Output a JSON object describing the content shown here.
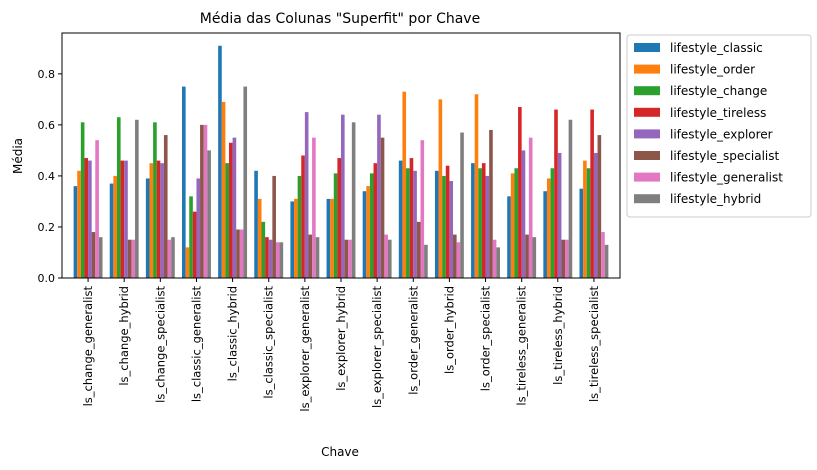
{
  "chart_data": {
    "type": "bar",
    "title": "Média das Colunas \"Superfit\" por Chave",
    "xlabel": "Chave",
    "ylabel": "Média",
    "ylim": [
      0,
      0.96
    ],
    "yticks": [
      "0.0",
      "0.2",
      "0.4",
      "0.6",
      "0.8"
    ],
    "ytick_values": [
      0,
      0.2,
      0.4,
      0.6,
      0.8
    ],
    "legend_position": "outside-right",
    "grid": false,
    "categories": [
      "ls_change_generalist",
      "ls_change_hybrid",
      "ls_change_specialist",
      "ls_classic_generalist",
      "ls_classic_hybrid",
      "ls_classic_specialist",
      "ls_explorer_generalist",
      "ls_explorer_hybrid",
      "ls_explorer_specialist",
      "ls_order_generalist",
      "ls_order_hybrid",
      "ls_order_specialist",
      "ls_tireless_generalist",
      "ls_tireless_hybrid",
      "ls_tireless_specialist"
    ],
    "series": [
      {
        "name": "lifestyle_classic",
        "color": "#1f77b4",
        "values": [
          0.36,
          0.37,
          0.39,
          0.75,
          0.91,
          0.42,
          0.3,
          0.31,
          0.34,
          0.46,
          0.42,
          0.45,
          0.32,
          0.34,
          0.35
        ]
      },
      {
        "name": "lifestyle_order",
        "color": "#ff7f0e",
        "values": [
          0.42,
          0.4,
          0.45,
          0.12,
          0.69,
          0.31,
          0.31,
          0.31,
          0.36,
          0.73,
          0.7,
          0.72,
          0.41,
          0.39,
          0.46
        ]
      },
      {
        "name": "lifestyle_change",
        "color": "#2ca02c",
        "values": [
          0.61,
          0.63,
          0.61,
          0.32,
          0.45,
          0.22,
          0.4,
          0.41,
          0.41,
          0.43,
          0.4,
          0.43,
          0.43,
          0.43,
          0.43
        ]
      },
      {
        "name": "lifestyle_tireless",
        "color": "#d62728",
        "values": [
          0.47,
          0.46,
          0.46,
          0.26,
          0.53,
          0.16,
          0.48,
          0.47,
          0.45,
          0.47,
          0.44,
          0.45,
          0.67,
          0.66,
          0.66
        ]
      },
      {
        "name": "lifestyle_explorer",
        "color": "#9467bd",
        "values": [
          0.46,
          0.46,
          0.45,
          0.39,
          0.55,
          0.15,
          0.65,
          0.64,
          0.64,
          0.42,
          0.38,
          0.4,
          0.5,
          0.49,
          0.49
        ]
      },
      {
        "name": "lifestyle_specialist",
        "color": "#8c564b",
        "values": [
          0.18,
          0.15,
          0.56,
          0.6,
          0.19,
          0.4,
          0.17,
          0.15,
          0.55,
          0.22,
          0.17,
          0.58,
          0.17,
          0.15,
          0.56
        ]
      },
      {
        "name": "lifestyle_generalist",
        "color": "#e377c2",
        "values": [
          0.54,
          0.15,
          0.15,
          0.6,
          0.19,
          0.14,
          0.55,
          0.15,
          0.17,
          0.54,
          0.14,
          0.15,
          0.55,
          0.15,
          0.18
        ]
      },
      {
        "name": "lifestyle_hybrid",
        "color": "#7f7f7f",
        "values": [
          0.16,
          0.62,
          0.16,
          0.5,
          0.75,
          0.14,
          0.16,
          0.61,
          0.15,
          0.13,
          0.57,
          0.12,
          0.16,
          0.62,
          0.13
        ]
      }
    ]
  }
}
